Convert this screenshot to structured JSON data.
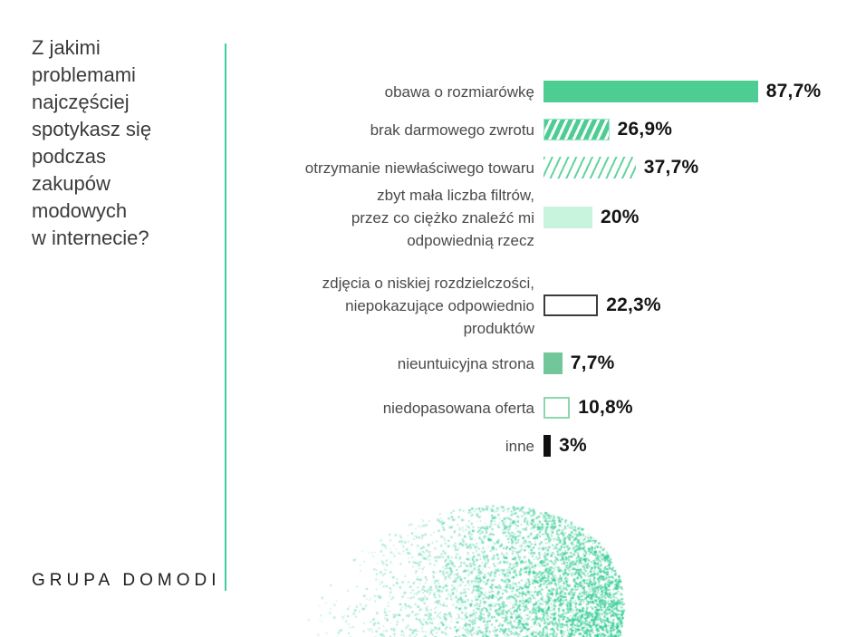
{
  "question": "Z jakimi\nproblemami\nnajczęściej\nspotykasz się\npodczas\nzakupów\nmodowych\nw internecie?",
  "brand": "GRUPA DOMODI",
  "colors": {
    "accent_green": "#4ecd92",
    "divider_teal": "#3ecf9c",
    "mint": "#c8f3dc",
    "muted_green": "#71c79a",
    "outline_green": "#8bd8ad",
    "outline_dark": "#3c3c3c",
    "black_bar": "#101010",
    "dots_green": "#2ecb92"
  },
  "chart_data": {
    "type": "bar",
    "orientation": "horizontal",
    "unit": "%",
    "title": "Z jakimi problemami najczęściej spotykasz się podczas zakupów modowych w internecie?",
    "xlim": [
      0,
      100
    ],
    "grid": false,
    "legend": "none",
    "categories": [
      "obawa o rozmiarówkę",
      "brak darmowego zwrotu",
      "otrzymanie niewłaściwego towaru",
      "zbyt mała liczba filtrów, przez co ciężko znaleźć mi odpowiednią rzecz",
      "zdjęcia o niskiej rozdzielczości, niepokazujące odpowiednio produktów",
      "nieuntuicyjna strona",
      "niedopasowana oferta",
      "inne"
    ],
    "values": [
      87.7,
      26.9,
      37.7,
      20,
      22.3,
      7.7,
      10.8,
      3
    ],
    "rows": [
      {
        "label": "obawa o rozmiarówkę",
        "value": 87.7,
        "display": "87,7%",
        "style": "solid"
      },
      {
        "label": "brak darmowego zwrotu",
        "value": 26.9,
        "display": "26,9%",
        "style": "hatch-thick"
      },
      {
        "label": "otrzymanie niewłaściwego towaru",
        "value": 37.7,
        "display": "37,7%",
        "style": "hatch-thin"
      },
      {
        "label": "zbyt mała liczba filtrów,\nprzez co ciężko znaleźć mi\nodpowiednią rzecz",
        "value": 20,
        "display": "20%",
        "style": "mint"
      },
      {
        "label": "zdjęcia o niskiej rozdzielczości,\nniepokazujące odpowiednio\nproduktów",
        "value": 22.3,
        "display": "22,3%",
        "style": "outline-dark"
      },
      {
        "label": "nieuntuicyjna strona",
        "value": 7.7,
        "display": "7,7%",
        "style": "solid-muted"
      },
      {
        "label": "niedopasowana oferta",
        "value": 10.8,
        "display": "10,8%",
        "style": "outline-green"
      },
      {
        "label": "inne",
        "value": 3,
        "display": "3%",
        "style": "black"
      }
    ]
  }
}
